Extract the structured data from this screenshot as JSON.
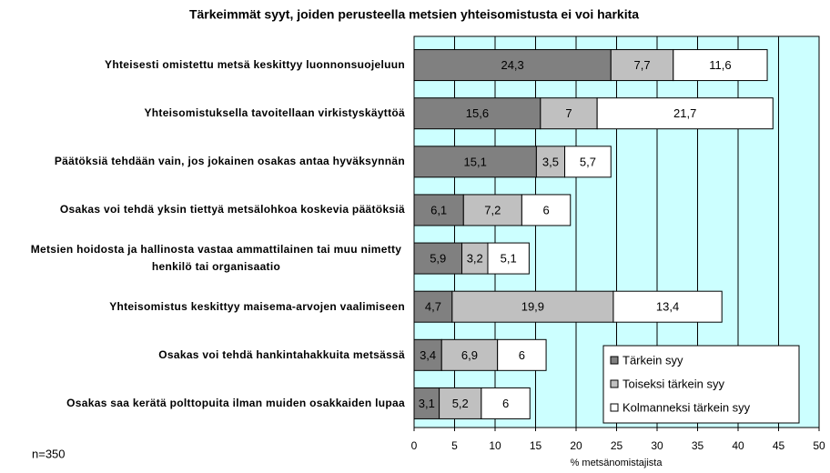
{
  "chart_data": {
    "type": "stacked-bar-horizontal",
    "title": "Tärkeimmät syyt, joiden perusteella metsien yhteisomistusta ei voi harkita",
    "categories": [
      "Yhteisesti omistettu metsä keskittyy luonnonsuojeluun",
      "Yhteisomistuksella tavoitellaan virkistyskäyttöä",
      "Päätöksiä tehdään vain, jos jokainen osakas antaa hyväksynnän",
      "Osakas voi tehdä yksin tiettyä metsälohkoa koskevia päätöksiä",
      "Metsien hoidosta ja hallinosta vastaa ammattilainen tai muu nimetty henkilö tai organisaatio",
      "Yhteisomistus keskittyy maisema-arvojen vaalimiseen",
      "Osakas voi tehdä hankintahakkuita metsässä",
      "Osakas saa kerätä polttopuita ilman muiden osakkaiden lupaa"
    ],
    "series": [
      {
        "name": "Tärkein syy",
        "color": "#808080",
        "values": [
          24.3,
          15.6,
          15.1,
          6.1,
          5.9,
          4.7,
          3.4,
          3.1
        ],
        "value_labels": [
          "24,3",
          "15,6",
          "15,1",
          "6,1",
          "5,9",
          "4,7",
          "3,4",
          "3,1"
        ]
      },
      {
        "name": "Toiseksi tärkein syy",
        "color": "#c0c0c0",
        "values": [
          7.7,
          7,
          3.5,
          7.2,
          3.2,
          19.9,
          6.9,
          5.2
        ],
        "value_labels": [
          "7,7",
          "7",
          "3,5",
          "7,2",
          "3,2",
          "19,9",
          "6,9",
          "5,2"
        ]
      },
      {
        "name": "Kolmanneksi tärkein syy",
        "color": "#ffffff",
        "values": [
          11.6,
          21.7,
          5.7,
          6,
          5.1,
          13.4,
          6,
          6
        ],
        "value_labels": [
          "11,6",
          "21,7",
          "5,7",
          "6",
          "5,1",
          "13,4",
          "6",
          "6"
        ]
      }
    ],
    "xlabel": "% metsänomistajista",
    "note": "n=350",
    "xlim": [
      0,
      50
    ],
    "xticks": [
      0,
      5,
      10,
      15,
      20,
      25,
      30,
      35,
      40,
      45,
      50
    ],
    "grid": true,
    "background": "#ccffff",
    "legend": "lower right"
  }
}
